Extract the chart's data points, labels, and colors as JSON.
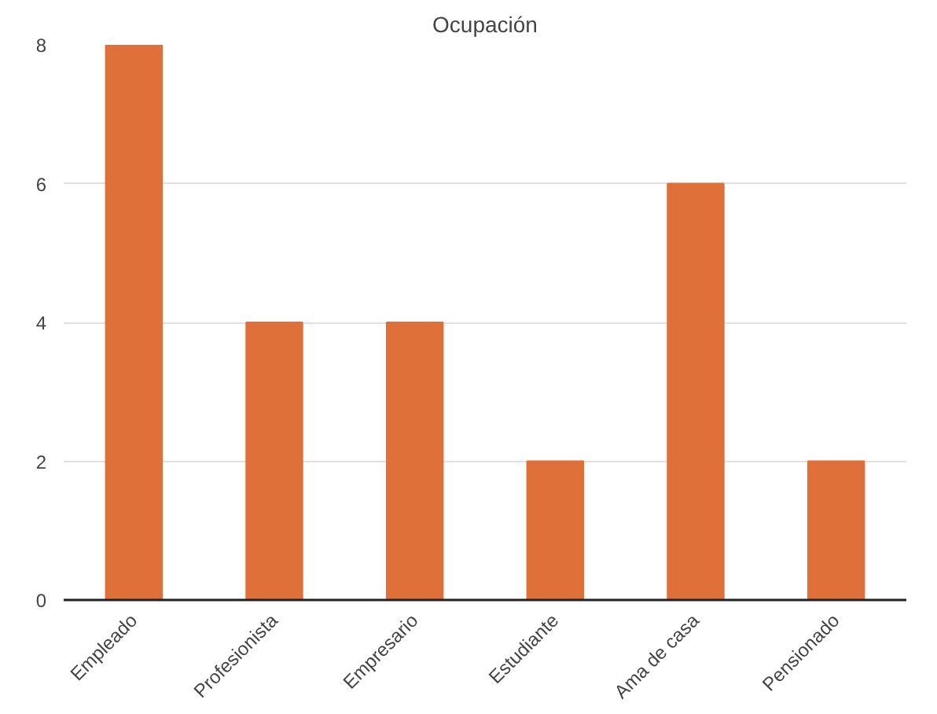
{
  "chart_data": {
    "type": "bar",
    "title": "Ocupación",
    "categories": [
      "Empleado",
      "Profesionista",
      "Empresario",
      "Estudiante",
      "Ama de casa",
      "Pensionado"
    ],
    "values": [
      8,
      4,
      4,
      2,
      6,
      2
    ],
    "color": "#e0703a",
    "ylim": [
      0,
      8
    ],
    "yticks": [
      0,
      2,
      4,
      6,
      8
    ],
    "grid": "y"
  }
}
